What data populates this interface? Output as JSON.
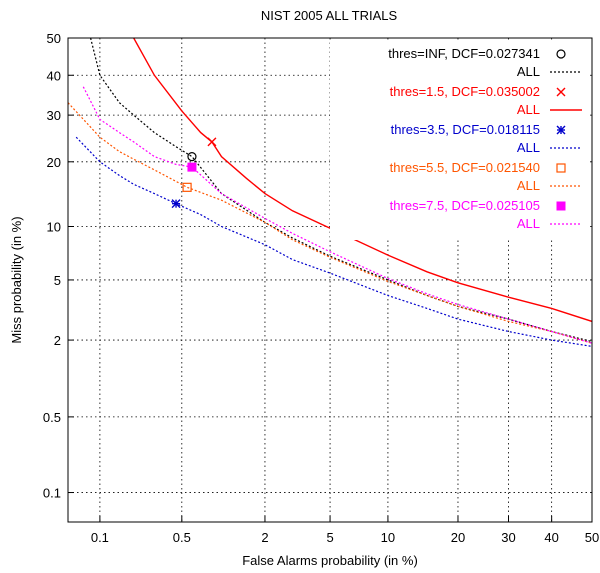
{
  "chart_data": {
    "type": "line",
    "title": "NIST 2005 ALL TRIALS",
    "xlabel": "False Alarms probability (in %)",
    "ylabel": "Miss probability (in %)",
    "xscale": "probit",
    "yscale": "probit",
    "xlim": [
      0.05,
      50
    ],
    "ylim": [
      0.05,
      50
    ],
    "xticks": [
      0.1,
      0.5,
      2,
      5,
      10,
      20,
      30,
      40,
      50
    ],
    "xtick_labels": [
      "0.1",
      "0.5",
      "2",
      "5",
      "10",
      "20",
      "30",
      "40",
      "50"
    ],
    "yticks": [
      0.1,
      0.5,
      2,
      5,
      10,
      20,
      30,
      40,
      50
    ],
    "ytick_labels": [
      "0.1",
      "0.5",
      "2",
      "5",
      "10",
      "20",
      "30",
      "40",
      "50"
    ],
    "grid": true,
    "legend_position": "top-right",
    "series": [
      {
        "label": "thres=INF, DCF=0.027341",
        "line_label": "ALL",
        "color": "#000000",
        "dash": "2 2",
        "width": 1.2,
        "marker": "circle",
        "point": {
          "x": 0.6,
          "y": 21
        },
        "x": [
          0.082,
          0.1,
          0.15,
          0.2,
          0.3,
          0.45,
          0.6,
          1.0,
          2.0,
          3.0,
          5.0,
          10,
          15,
          20,
          30,
          40,
          50
        ],
        "y": [
          50,
          40,
          33,
          30,
          26,
          23,
          21,
          14.5,
          10.5,
          8.7,
          6.9,
          5.0,
          4.0,
          3.4,
          2.8,
          2.3,
          1.95
        ]
      },
      {
        "label": "thres=1.5, DCF=0.035002",
        "line_label": "ALL",
        "color": "#ff0000",
        "dash": "",
        "width": 1.4,
        "marker": "cross",
        "point": {
          "x": 0.85,
          "y": 24
        },
        "x": [
          0.2,
          0.3,
          0.5,
          0.7,
          0.85,
          1.0,
          1.5,
          2.0,
          3.0,
          5.0,
          10,
          15,
          20,
          30,
          40,
          50
        ],
        "y": [
          50,
          40,
          31,
          26,
          24,
          21,
          17,
          14.5,
          12,
          9.8,
          7.0,
          5.6,
          4.8,
          3.9,
          3.3,
          2.7
        ]
      },
      {
        "label": "thres=3.5, DCF=0.018115",
        "line_label": "ALL",
        "color": "#0000cc",
        "dash": "2 2",
        "width": 1.2,
        "marker": "star",
        "point": {
          "x": 0.45,
          "y": 13
        },
        "x": [
          0.06,
          0.1,
          0.15,
          0.2,
          0.3,
          0.45,
          0.7,
          1.0,
          2.0,
          3.0,
          5.0,
          10,
          15,
          20,
          30,
          40,
          50
        ],
        "y": [
          25,
          20,
          17.5,
          16,
          14.5,
          13,
          11.5,
          10,
          8.0,
          6.6,
          5.5,
          4.0,
          3.3,
          2.8,
          2.3,
          2.0,
          1.8
        ]
      },
      {
        "label": "thres=5.5, DCF=0.021540",
        "line_label": "ALL",
        "color": "#ff5500",
        "dash": "2 2",
        "width": 1.2,
        "marker": "square",
        "point": {
          "x": 0.55,
          "y": 15.5
        },
        "x": [
          0.05,
          0.1,
          0.15,
          0.2,
          0.3,
          0.55,
          1.0,
          2.0,
          3.0,
          5.0,
          10,
          15,
          20,
          30,
          40,
          50
        ],
        "y": [
          33,
          25,
          22,
          20.5,
          18.5,
          15.5,
          13.5,
          10.5,
          8.5,
          6.8,
          4.9,
          4.0,
          3.4,
          2.7,
          2.3,
          1.9
        ]
      },
      {
        "label": "thres=7.5, DCF=0.025105",
        "line_label": "ALL",
        "color": "#ff00ff",
        "dash": "2 2",
        "width": 1.2,
        "marker": "filled-square",
        "point": {
          "x": 0.6,
          "y": 19
        },
        "x": [
          0.07,
          0.1,
          0.15,
          0.2,
          0.3,
          0.45,
          0.6,
          1.0,
          2.0,
          3.0,
          5.0,
          10,
          15,
          20,
          30,
          40,
          50
        ],
        "y": [
          37,
          29,
          26,
          24,
          21,
          19.5,
          19,
          14.5,
          11,
          9.2,
          7.3,
          5.1,
          4.1,
          3.5,
          2.8,
          2.3,
          1.9
        ]
      }
    ]
  }
}
